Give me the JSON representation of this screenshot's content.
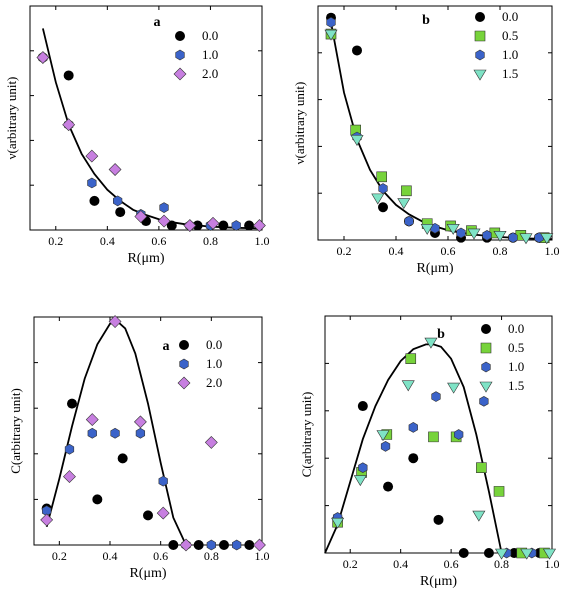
{
  "chart_data": [
    {
      "id": "top_left",
      "type": "scatter",
      "panel_label": "a",
      "xlabel": "R(μm)",
      "ylabel": "ν(arbitrary unit)",
      "xlim": [
        0.1,
        1.0
      ],
      "ylim": [
        0,
        1
      ],
      "xticks": [
        "0.2",
        "0.4",
        "0.6",
        "0.8",
        "1.0"
      ],
      "legend_position": "top-right",
      "series": [
        {
          "name": "0.0",
          "marker": "circle",
          "color": "#000000",
          "x": [
            0.15,
            0.25,
            0.35,
            0.45,
            0.55,
            0.65,
            0.75,
            0.85,
            0.95
          ],
          "y": [
            0.77,
            0.69,
            0.13,
            0.08,
            0.04,
            0.02,
            0.02,
            0.02,
            0.02
          ]
        },
        {
          "name": "1.0",
          "marker": "hexagon",
          "color": "#3b63c9",
          "x": [
            0.15,
            0.25,
            0.34,
            0.44,
            0.53,
            0.62,
            0.72,
            0.8,
            0.9
          ],
          "y": [
            0.77,
            0.47,
            0.21,
            0.13,
            0.07,
            0.1,
            0.02,
            0.02,
            0.02
          ]
        },
        {
          "name": "2.0",
          "marker": "diamond",
          "color": "#c77fe0",
          "x": [
            0.15,
            0.25,
            0.34,
            0.43,
            0.53,
            0.62,
            0.72,
            0.81,
            0.99
          ],
          "y": [
            0.77,
            0.47,
            0.33,
            0.27,
            0.06,
            0.04,
            0.02,
            0.03,
            0.02
          ]
        }
      ],
      "curve": {
        "x": [
          0.15,
          0.2,
          0.25,
          0.3,
          0.35,
          0.4,
          0.45,
          0.5,
          0.55,
          0.6,
          0.65,
          0.7,
          0.8,
          0.9,
          1.0
        ],
        "y": [
          0.9,
          0.66,
          0.47,
          0.34,
          0.25,
          0.18,
          0.13,
          0.09,
          0.067,
          0.048,
          0.035,
          0.026,
          0.015,
          0.01,
          0.007
        ]
      }
    },
    {
      "id": "top_right",
      "type": "scatter",
      "panel_label": "b",
      "xlabel": "R(μm)",
      "ylabel": "ν(arbitrary unit)",
      "xlim": [
        0.1,
        1.0
      ],
      "ylim": [
        0,
        1
      ],
      "xticks": [
        "0.2",
        "0.4",
        "0.6",
        "0.8",
        "1.0"
      ],
      "legend_position": "top-right",
      "series": [
        {
          "name": "0.0",
          "marker": "circle",
          "color": "#000000",
          "x": [
            0.15,
            0.25,
            0.35,
            0.45,
            0.55,
            0.65,
            0.75,
            0.85,
            0.95
          ],
          "y": [
            0.95,
            0.81,
            0.14,
            0.08,
            0.03,
            0.01,
            0.01,
            0.01,
            0.01
          ]
        },
        {
          "name": "0.5",
          "marker": "square",
          "color": "#77d33b",
          "x": [
            0.15,
            0.245,
            0.345,
            0.44,
            0.52,
            0.61,
            0.69,
            0.78,
            0.88,
            0.97
          ],
          "y": [
            0.88,
            0.47,
            0.27,
            0.21,
            0.07,
            0.06,
            0.04,
            0.03,
            0.02,
            0.01
          ]
        },
        {
          "name": "1.0",
          "marker": "hexagon",
          "color": "#3b63c9",
          "x": [
            0.15,
            0.25,
            0.35,
            0.45,
            0.55,
            0.65,
            0.75,
            0.85,
            0.95
          ],
          "y": [
            0.93,
            0.44,
            0.22,
            0.08,
            0.05,
            0.03,
            0.02,
            0.01,
            0.01
          ]
        },
        {
          "name": "1.5",
          "marker": "triangle-down",
          "color": "#7fe3c6",
          "x": [
            0.15,
            0.25,
            0.33,
            0.43,
            0.52,
            0.62,
            0.7,
            0.8,
            0.9,
            0.98
          ],
          "y": [
            0.88,
            0.43,
            0.18,
            0.16,
            0.05,
            0.05,
            0.03,
            0.02,
            0.01,
            0.01
          ]
        }
      ],
      "curve": {
        "x": [
          0.15,
          0.2,
          0.25,
          0.3,
          0.35,
          0.4,
          0.45,
          0.5,
          0.55,
          0.6,
          0.65,
          0.7,
          0.8,
          0.9,
          1.0
        ],
        "y": [
          0.93,
          0.63,
          0.43,
          0.3,
          0.21,
          0.15,
          0.11,
          0.08,
          0.058,
          0.042,
          0.031,
          0.023,
          0.013,
          0.007,
          0.004
        ]
      }
    },
    {
      "id": "bottom_left",
      "type": "scatter",
      "panel_label": "a",
      "xlabel": "R(μm)",
      "ylabel": "C(arbitrary unit)",
      "xlim": [
        0.1,
        1.0
      ],
      "ylim": [
        0,
        1
      ],
      "xticks": [
        "0.2",
        "0.4",
        "0.6",
        "0.8",
        "1.0"
      ],
      "legend_position": "top-right",
      "series": [
        {
          "name": "0.0",
          "marker": "circle",
          "color": "#000000",
          "x": [
            0.15,
            0.25,
            0.35,
            0.45,
            0.55,
            0.65,
            0.75,
            0.85,
            0.95
          ],
          "y": [
            0.16,
            0.62,
            0.2,
            0.38,
            0.13,
            0.0,
            0.0,
            0.0,
            0.0
          ]
        },
        {
          "name": "1.0",
          "marker": "hexagon",
          "color": "#3b63c9",
          "x": [
            0.15,
            0.24,
            0.33,
            0.42,
            0.52,
            0.61,
            0.7,
            0.8,
            0.9
          ],
          "y": [
            0.15,
            0.42,
            0.49,
            0.49,
            0.49,
            0.28,
            0.0,
            0.0,
            0.0
          ]
        },
        {
          "name": "2.0",
          "marker": "diamond",
          "color": "#c77fe0",
          "x": [
            0.15,
            0.24,
            0.33,
            0.42,
            0.52,
            0.61,
            0.7,
            0.8,
            0.99
          ],
          "y": [
            0.11,
            0.3,
            0.55,
            0.98,
            0.54,
            0.14,
            0.0,
            0.45,
            0.0
          ]
        }
      ],
      "curve": {
        "x": [
          0.15,
          0.2,
          0.25,
          0.3,
          0.35,
          0.4,
          0.43,
          0.46,
          0.5,
          0.55,
          0.6,
          0.65,
          0.7
        ],
        "y": [
          0.08,
          0.29,
          0.52,
          0.73,
          0.88,
          0.97,
          0.98,
          0.95,
          0.84,
          0.62,
          0.36,
          0.12,
          0.0
        ]
      }
    },
    {
      "id": "bottom_right",
      "type": "scatter",
      "panel_label": "b",
      "xlabel": "R(μm)",
      "ylabel": "C(arbitrary unit)",
      "xlim": [
        0.1,
        1.0
      ],
      "ylim": [
        0,
        1
      ],
      "xticks": [
        "0.2",
        "0.4",
        "0.6",
        "0.8",
        "1.0"
      ],
      "legend_position": "top-right",
      "series": [
        {
          "name": "0.0",
          "marker": "circle",
          "color": "#000000",
          "x": [
            0.15,
            0.25,
            0.35,
            0.45,
            0.55,
            0.65,
            0.75,
            0.85,
            0.95
          ],
          "y": [
            0.14,
            0.62,
            0.28,
            0.4,
            0.14,
            0.0,
            0.0,
            0.0,
            0.0
          ]
        },
        {
          "name": "0.5",
          "marker": "square",
          "color": "#77d33b",
          "x": [
            0.15,
            0.245,
            0.345,
            0.44,
            0.53,
            0.62,
            0.72,
            0.79,
            0.88,
            0.97
          ],
          "y": [
            0.13,
            0.34,
            0.5,
            0.82,
            0.49,
            0.49,
            0.36,
            0.26,
            0.0,
            0.0
          ]
        },
        {
          "name": "1.0",
          "marker": "hexagon",
          "color": "#3b63c9",
          "x": [
            0.15,
            0.25,
            0.34,
            0.45,
            0.54,
            0.63,
            0.73,
            0.82,
            0.92
          ],
          "y": [
            0.15,
            0.36,
            0.45,
            0.53,
            0.66,
            0.5,
            0.64,
            0.0,
            0.0
          ]
        },
        {
          "name": "1.5",
          "marker": "triangle-down",
          "color": "#7fe3c6",
          "x": [
            0.15,
            0.24,
            0.33,
            0.43,
            0.52,
            0.61,
            0.71,
            0.8,
            0.9,
            0.99
          ],
          "y": [
            0.13,
            0.31,
            0.5,
            0.71,
            0.89,
            0.7,
            0.16,
            0.0,
            0.0,
            0.0
          ]
        }
      ],
      "curve": {
        "x": [
          0.1,
          0.15,
          0.2,
          0.25,
          0.3,
          0.35,
          0.4,
          0.45,
          0.5,
          0.53,
          0.56,
          0.6,
          0.65,
          0.7,
          0.75,
          0.8
        ],
        "y": [
          0.0,
          0.12,
          0.3,
          0.48,
          0.62,
          0.73,
          0.81,
          0.86,
          0.88,
          0.88,
          0.87,
          0.82,
          0.7,
          0.5,
          0.26,
          0.0
        ]
      }
    }
  ]
}
